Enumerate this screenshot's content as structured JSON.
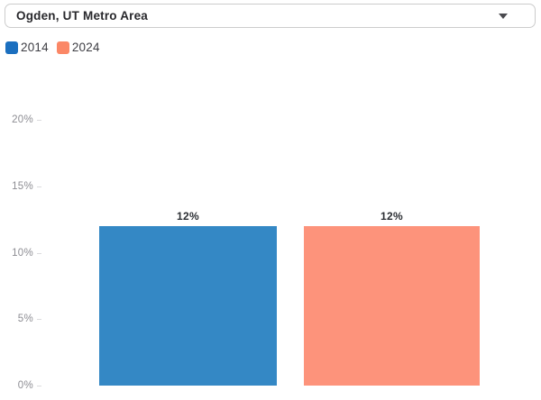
{
  "dropdown": {
    "value": "Ogden, UT Metro Area"
  },
  "legend": {
    "items": [
      {
        "label": "2014",
        "color": "#1b6fbf"
      },
      {
        "label": "2024",
        "color": "#fb8766"
      }
    ]
  },
  "chart_data": {
    "type": "bar",
    "title": "",
    "xlabel": "",
    "ylabel": "",
    "categories": [
      "2014",
      "2024"
    ],
    "values": [
      12,
      12
    ],
    "series": [
      {
        "name": "2014",
        "value": 12,
        "label": "12%",
        "bar_color": "#3488c5"
      },
      {
        "name": "2024",
        "value": 12,
        "label": "12%",
        "bar_color": "#fd937b"
      }
    ],
    "yticks": [
      "0%",
      "5%",
      "10%",
      "15%",
      "20%"
    ],
    "ytick_values": [
      0,
      5,
      10,
      15,
      20
    ],
    "ylim": [
      0,
      20
    ],
    "grid": false,
    "legend_position": "top-left"
  }
}
